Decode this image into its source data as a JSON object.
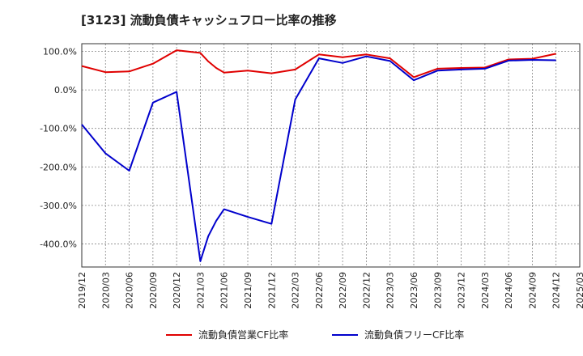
{
  "chart_data": {
    "type": "line",
    "title": "[3123]  流動負債キャッシュフロー比率の推移",
    "x": [
      "2019/12",
      "2020/03",
      "2020/06",
      "2020/09",
      "2020/12",
      "2021/03",
      "2021/04",
      "2021/05",
      "2021/06",
      "2021/09",
      "2021/12",
      "2022/03",
      "2022/06",
      "2022/09",
      "2022/12",
      "2023/03",
      "2023/06",
      "2023/09",
      "2023/12",
      "2024/03",
      "2024/06",
      "2024/09",
      "2024/12"
    ],
    "series": [
      {
        "name": "流動負債営業CF比率",
        "color": "#e00000",
        "values": [
          62,
          46,
          48,
          68,
          103,
          96,
          74,
          57,
          45,
          50,
          43,
          53,
          92,
          85,
          92,
          82,
          33,
          55,
          57,
          58,
          79,
          81,
          94
        ]
      },
      {
        "name": "流動負債フリーCF比率",
        "color": "#0000cc",
        "values": [
          -90,
          -165,
          -210,
          -33,
          -5,
          -445,
          -380,
          -340,
          -310,
          -330,
          -348,
          -25,
          82,
          70,
          87,
          75,
          25,
          50,
          53,
          55,
          76,
          78,
          77
        ]
      }
    ],
    "xticks": [
      "2019/12",
      "2020/03",
      "2020/06",
      "2020/09",
      "2020/12",
      "2021/03",
      "2021/06",
      "2021/09",
      "2021/12",
      "2022/03",
      "2022/06",
      "2022/09",
      "2022/12",
      "2023/03",
      "2023/06",
      "2023/09",
      "2023/12",
      "2024/03",
      "2024/06",
      "2024/09",
      "2024/12",
      "2025/03"
    ],
    "yticks": [
      100,
      0,
      -100,
      -200,
      -300,
      -400
    ],
    "ytick_labels": [
      "100.0%",
      "0.0%",
      "-100.0%",
      "-200.0%",
      "-300.0%",
      "-400.0%"
    ],
    "ylim": [
      -460,
      120
    ],
    "grid": true,
    "legend_position": "bottom"
  }
}
